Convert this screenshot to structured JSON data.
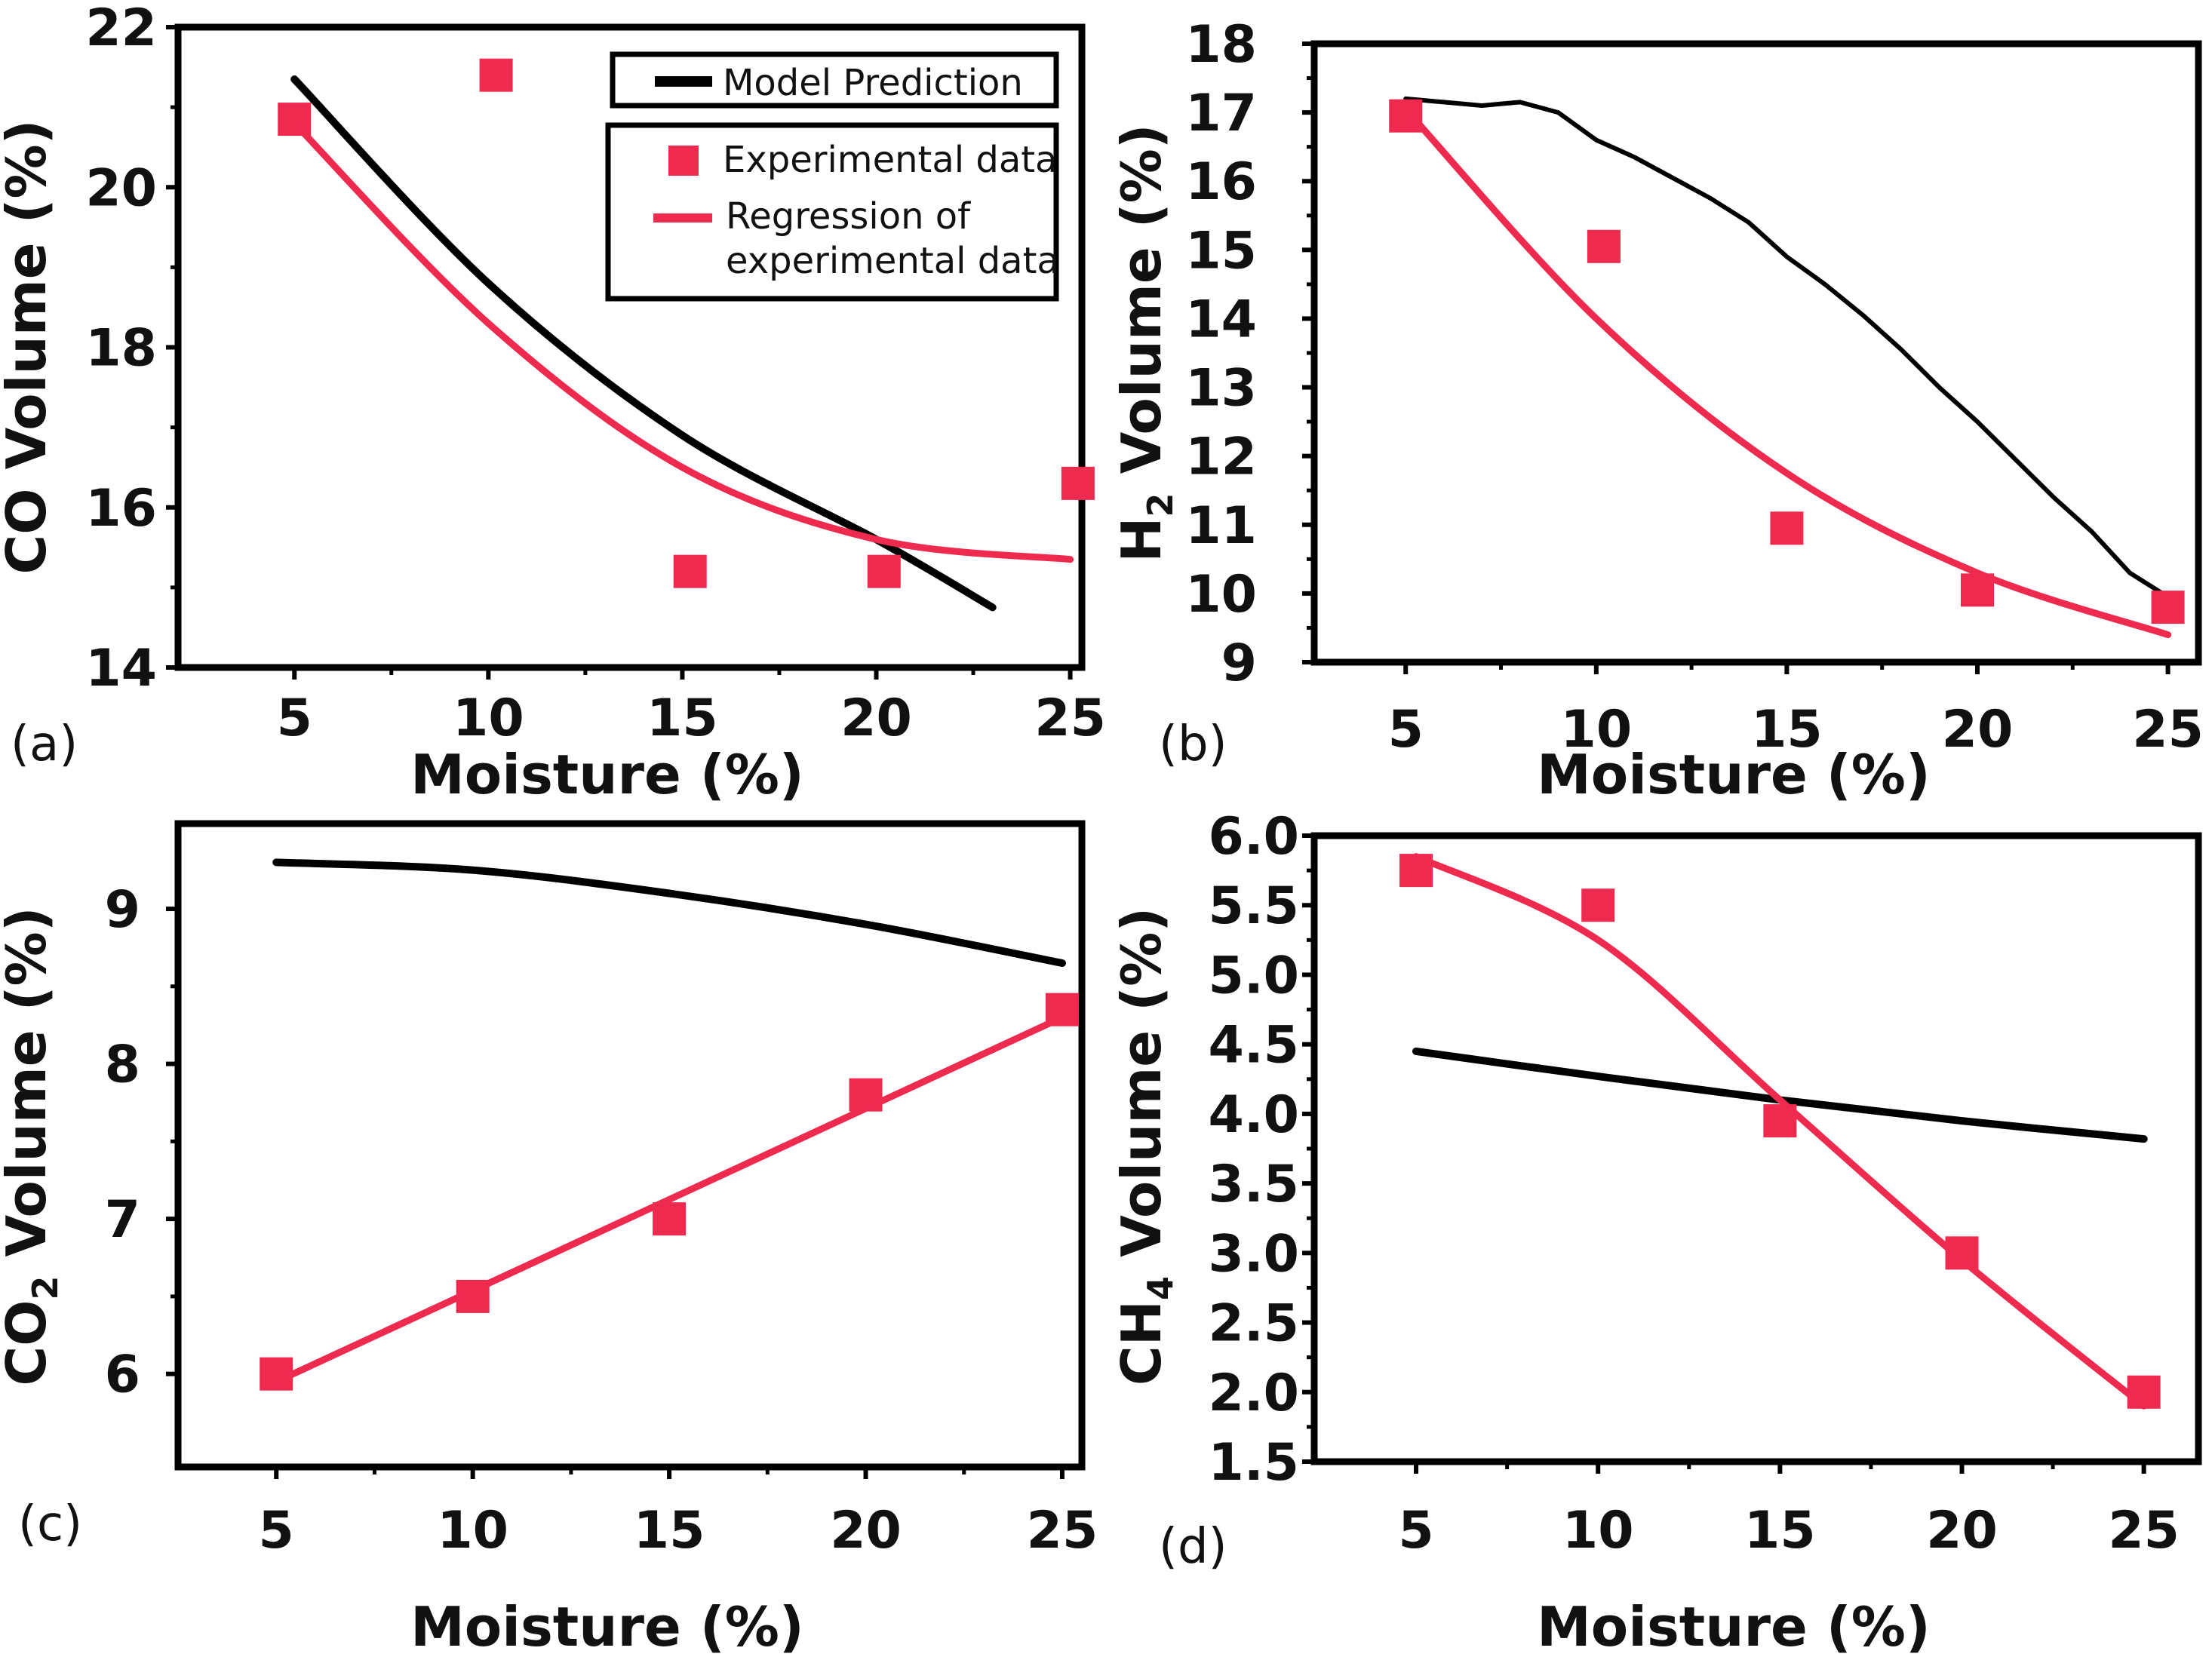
{
  "legend": {
    "model": "Model Prediction",
    "experimental": "Experimental data",
    "regression_line1": "Regression of",
    "regression_line2": "experimental data"
  },
  "colors": {
    "model": "#000000",
    "experimental": "#ee2a4f",
    "regression": "#ee2a4f"
  },
  "chart_data": [
    {
      "id": "a",
      "type": "line",
      "panel_label": "(a)",
      "xlabel": "Moisture (%)",
      "ylabel": "CO Volume (%)",
      "xlim": [
        2,
        25.3
      ],
      "ylim": [
        14,
        22
      ],
      "xticks": [
        5,
        10,
        15,
        20,
        25
      ],
      "yticks": [
        14,
        16,
        18,
        20,
        22
      ],
      "series": [
        {
          "name": "Model Prediction",
          "kind": "line",
          "x": [
            5,
            10,
            15,
            20,
            23
          ],
          "y": [
            21.35,
            18.8,
            16.9,
            15.6,
            14.75
          ]
        },
        {
          "name": "Experimental data",
          "kind": "scatter",
          "x": [
            5,
            10.2,
            15.2,
            20.2,
            25.2
          ],
          "y": [
            20.85,
            21.4,
            15.2,
            15.2,
            16.3
          ]
        },
        {
          "name": "Regression of experimental data",
          "kind": "line",
          "x": [
            5,
            10,
            15,
            20,
            25
          ],
          "y": [
            20.8,
            18.3,
            16.5,
            15.6,
            15.35
          ]
        }
      ]
    },
    {
      "id": "b",
      "type": "line",
      "panel_label": "(b)",
      "xlabel": "Moisture (%)",
      "ylabel": "H2 Volume (%)",
      "ylabel_main": "H",
      "ylabel_sub": "2",
      "ylabel_tail": " Volume (%)",
      "xlim": [
        2.6,
        25.8
      ],
      "ylim": [
        9,
        18
      ],
      "xticks": [
        5,
        10,
        15,
        20,
        25
      ],
      "yticks": [
        9,
        10,
        11,
        12,
        13,
        14,
        15,
        16,
        17,
        18
      ],
      "series": [
        {
          "name": "Model Prediction",
          "kind": "line",
          "x": [
            5,
            6,
            7,
            8,
            9,
            10,
            11,
            12,
            13,
            14,
            15,
            16,
            17,
            18,
            19,
            20,
            21,
            22,
            23,
            24,
            25
          ],
          "y": [
            17.2,
            17.15,
            17.1,
            17.15,
            17.0,
            16.6,
            16.35,
            16.05,
            15.75,
            15.4,
            14.9,
            14.5,
            14.05,
            13.55,
            13.0,
            12.5,
            11.95,
            11.4,
            10.9,
            10.3,
            9.95
          ]
        },
        {
          "name": "Experimental data",
          "kind": "scatter",
          "x": [
            5,
            10.2,
            15,
            20,
            25
          ],
          "y": [
            16.95,
            15.05,
            10.95,
            10.05,
            9.8
          ]
        },
        {
          "name": "Regression of experimental data",
          "kind": "line",
          "x": [
            5,
            10,
            15,
            20,
            25
          ],
          "y": [
            17.05,
            14.0,
            11.75,
            10.3,
            9.4
          ]
        }
      ]
    },
    {
      "id": "c",
      "type": "line",
      "panel_label": "(c)",
      "xlabel": "Moisture (%)",
      "ylabel": "CO2 Volume (%)",
      "ylabel_main": "CO",
      "ylabel_sub": "2",
      "ylabel_tail": " Volume (%)",
      "xlim": [
        2.5,
        25.5
      ],
      "ylim": [
        5.4,
        9.55
      ],
      "xticks": [
        5,
        10,
        15,
        20,
        25
      ],
      "yticks": [
        6,
        7,
        8,
        9
      ],
      "series": [
        {
          "name": "Model Prediction",
          "kind": "line",
          "x": [
            5,
            10,
            15,
            20,
            25
          ],
          "y": [
            9.3,
            9.25,
            9.1,
            8.9,
            8.65
          ]
        },
        {
          "name": "Experimental data",
          "kind": "scatter",
          "x": [
            5,
            10,
            15,
            20,
            25
          ],
          "y": [
            6.0,
            6.5,
            7.0,
            7.8,
            8.35
          ]
        },
        {
          "name": "Regression of experimental data",
          "kind": "line",
          "x": [
            5,
            25
          ],
          "y": [
            5.95,
            8.3
          ]
        }
      ]
    },
    {
      "id": "d",
      "type": "line",
      "panel_label": "(d)",
      "xlabel": "Moisture (%)",
      "ylabel": "CH4 Volume (%)",
      "ylabel_main": "CH",
      "ylabel_sub": "4",
      "ylabel_tail": " Volume (%)",
      "xlim": [
        2.2,
        26.5
      ],
      "ylim": [
        1.5,
        6.0
      ],
      "xticks": [
        5,
        10,
        15,
        20,
        25
      ],
      "yticks": [
        1.5,
        2.0,
        2.5,
        3.0,
        3.5,
        4.0,
        4.5,
        5.0,
        5.5,
        6.0
      ],
      "ytick_labels": [
        "1.5",
        "2.0",
        "2.5",
        "3.0",
        "3.5",
        "4.0",
        "4.5",
        "5.0",
        "5.5",
        "6.0"
      ],
      "series": [
        {
          "name": "Model Prediction",
          "kind": "line",
          "x": [
            5,
            10,
            15,
            20,
            25
          ],
          "y": [
            4.45,
            4.27,
            4.1,
            3.95,
            3.82
          ]
        },
        {
          "name": "Experimental data",
          "kind": "scatter",
          "x": [
            5,
            10,
            15,
            20,
            25
          ],
          "y": [
            5.75,
            5.5,
            3.95,
            3.0,
            2.0
          ]
        },
        {
          "name": "Regression of experimental data",
          "kind": "line",
          "x": [
            5,
            10,
            15,
            20,
            25
          ],
          "y": [
            5.85,
            5.25,
            4.1,
            2.95,
            1.9
          ]
        }
      ]
    }
  ]
}
